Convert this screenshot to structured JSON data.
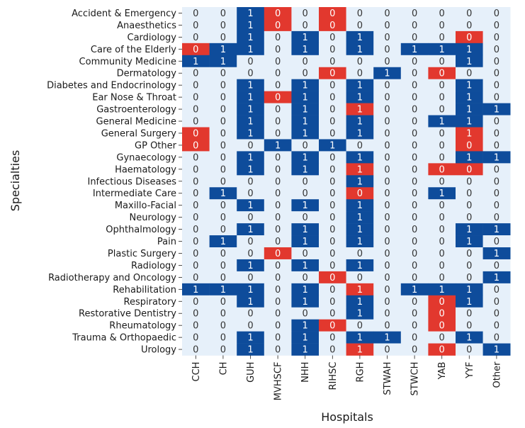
{
  "chart_data": {
    "type": "heatmap",
    "title": "",
    "xlabel": "Hospitals",
    "ylabel": "Specialties",
    "x_categories": [
      "CCH",
      "CH",
      "GUH",
      "MVHSCF",
      "NHH",
      "RIHSC",
      "RGH",
      "STWAH",
      "STWCH",
      "YAB",
      "YYF",
      "Other"
    ],
    "y_categories": [
      "Accident & Emergency",
      "Anaesthetics",
      "Cardiology",
      "Care of the Elderly",
      "Community Medicine",
      "Dermatology",
      "Diabetes and Endocrinology",
      "Ear Nose & Throat",
      "Gastroenterology",
      "General Medicine",
      "General Surgery",
      "GP Other",
      "Gynaecology",
      "Haematology",
      "Infectious Diseases",
      "Intermediate Care",
      "Maxillo-Facial",
      "Neurology",
      "Ophthalmology",
      "Pain",
      "Plastic Surgery",
      "Radiology",
      "Radiotherapy and Oncology",
      "Rehabilitation",
      "Respiratory",
      "Restorative Dentistry",
      "Rheumatology",
      "Trauma & Orthopaedic",
      "Urology"
    ],
    "values": [
      [
        0,
        0,
        1,
        0,
        0,
        0,
        0,
        0,
        0,
        0,
        0,
        0
      ],
      [
        0,
        0,
        1,
        0,
        0,
        0,
        0,
        0,
        0,
        0,
        0,
        0
      ],
      [
        0,
        0,
        1,
        0,
        1,
        0,
        1,
        0,
        0,
        0,
        0,
        0
      ],
      [
        0,
        1,
        1,
        0,
        1,
        0,
        1,
        0,
        1,
        1,
        1,
        0
      ],
      [
        1,
        1,
        0,
        0,
        0,
        0,
        0,
        0,
        0,
        0,
        1,
        0
      ],
      [
        0,
        0,
        0,
        0,
        0,
        0,
        0,
        1,
        0,
        0,
        0,
        0
      ],
      [
        0,
        0,
        1,
        0,
        1,
        0,
        1,
        0,
        0,
        0,
        1,
        0
      ],
      [
        0,
        0,
        1,
        0,
        1,
        0,
        1,
        0,
        0,
        0,
        1,
        0
      ],
      [
        0,
        0,
        1,
        0,
        1,
        0,
        1,
        0,
        0,
        0,
        1,
        1
      ],
      [
        0,
        0,
        1,
        0,
        1,
        0,
        1,
        0,
        0,
        1,
        1,
        0
      ],
      [
        0,
        0,
        1,
        0,
        1,
        0,
        1,
        0,
        0,
        0,
        1,
        0
      ],
      [
        0,
        0,
        0,
        1,
        0,
        1,
        0,
        0,
        0,
        0,
        0,
        0
      ],
      [
        0,
        0,
        1,
        0,
        1,
        0,
        1,
        0,
        0,
        0,
        1,
        1
      ],
      [
        0,
        0,
        1,
        0,
        1,
        0,
        1,
        0,
        0,
        0,
        0,
        0
      ],
      [
        0,
        0,
        0,
        0,
        0,
        0,
        1,
        0,
        0,
        0,
        0,
        0
      ],
      [
        0,
        1,
        0,
        0,
        0,
        0,
        0,
        0,
        0,
        1,
        0,
        0
      ],
      [
        0,
        0,
        1,
        0,
        1,
        0,
        1,
        0,
        0,
        0,
        0,
        0
      ],
      [
        0,
        0,
        0,
        0,
        0,
        0,
        1,
        0,
        0,
        0,
        0,
        0
      ],
      [
        0,
        0,
        1,
        0,
        1,
        0,
        1,
        0,
        0,
        0,
        1,
        1
      ],
      [
        0,
        1,
        0,
        0,
        1,
        0,
        1,
        0,
        0,
        0,
        1,
        0
      ],
      [
        0,
        0,
        0,
        0,
        0,
        0,
        0,
        0,
        0,
        0,
        0,
        1
      ],
      [
        0,
        0,
        1,
        0,
        1,
        0,
        1,
        0,
        0,
        0,
        0,
        0
      ],
      [
        0,
        0,
        0,
        0,
        0,
        0,
        0,
        0,
        0,
        0,
        0,
        1
      ],
      [
        1,
        1,
        1,
        0,
        1,
        0,
        1,
        0,
        1,
        1,
        1,
        0
      ],
      [
        0,
        0,
        1,
        0,
        1,
        0,
        1,
        0,
        0,
        0,
        1,
        0
      ],
      [
        0,
        0,
        0,
        0,
        0,
        0,
        1,
        0,
        0,
        0,
        0,
        0
      ],
      [
        0,
        0,
        0,
        0,
        1,
        0,
        0,
        0,
        0,
        0,
        0,
        0
      ],
      [
        0,
        0,
        1,
        0,
        1,
        0,
        1,
        1,
        0,
        0,
        1,
        0
      ],
      [
        0,
        0,
        1,
        0,
        1,
        0,
        1,
        0,
        0,
        0,
        0,
        1
      ]
    ],
    "highlighted_cells": [
      [
        0,
        3
      ],
      [
        0,
        5
      ],
      [
        1,
        3
      ],
      [
        1,
        5
      ],
      [
        2,
        10
      ],
      [
        3,
        0
      ],
      [
        5,
        5
      ],
      [
        5,
        9
      ],
      [
        7,
        3
      ],
      [
        8,
        6
      ],
      [
        10,
        0
      ],
      [
        10,
        10
      ],
      [
        11,
        0
      ],
      [
        11,
        10
      ],
      [
        13,
        6
      ],
      [
        13,
        9
      ],
      [
        13,
        10
      ],
      [
        15,
        6
      ],
      [
        20,
        3
      ],
      [
        22,
        5
      ],
      [
        23,
        6
      ],
      [
        24,
        9
      ],
      [
        25,
        9
      ],
      [
        26,
        5
      ],
      [
        26,
        9
      ],
      [
        28,
        6
      ],
      [
        28,
        9
      ]
    ],
    "colors": {
      "value_0": "#e6f0fa",
      "value_1": "#0e4c9b",
      "highlight": "#e2382e",
      "text_on_light": "#333333",
      "text_on_dark": "#ffffff"
    }
  }
}
